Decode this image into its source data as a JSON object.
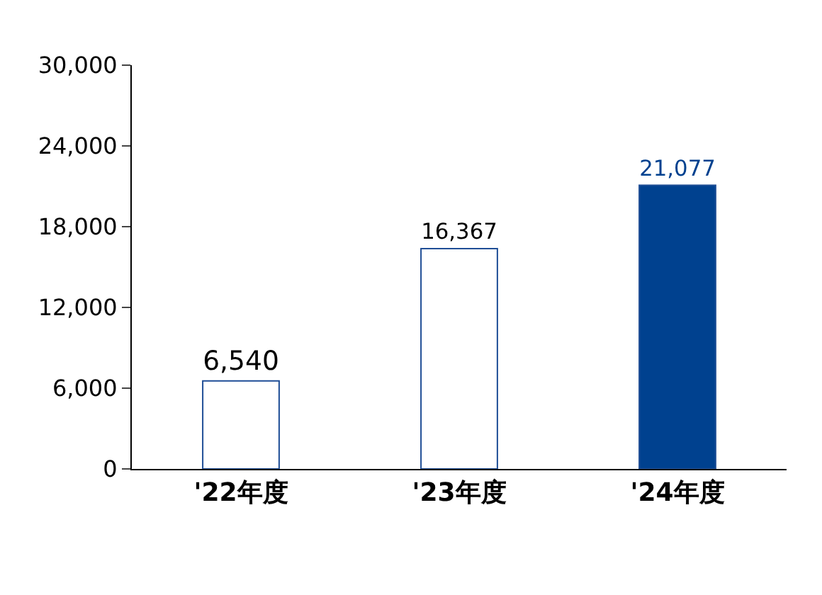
{
  "chart_data": {
    "type": "bar",
    "categories": [
      "'22年度",
      "'23年度",
      "'24年度"
    ],
    "values": [
      6540,
      16367,
      21077
    ],
    "colors": [
      "#ffffff",
      "#ffffff",
      "#00418f"
    ],
    "ylim": [
      0,
      30000
    ],
    "yticks": [
      {
        "value": 0,
        "label": "0"
      },
      {
        "value": 6000,
        "label": "6,000"
      },
      {
        "value": 12000,
        "label": "12,000"
      },
      {
        "value": 18000,
        "label": "18,000"
      },
      {
        "value": 24000,
        "label": "24,000"
      },
      {
        "value": 30000,
        "label": "30,000"
      }
    ],
    "value_labels": [
      "6,540",
      "16,367",
      "21,077"
    ],
    "legend": false
  }
}
